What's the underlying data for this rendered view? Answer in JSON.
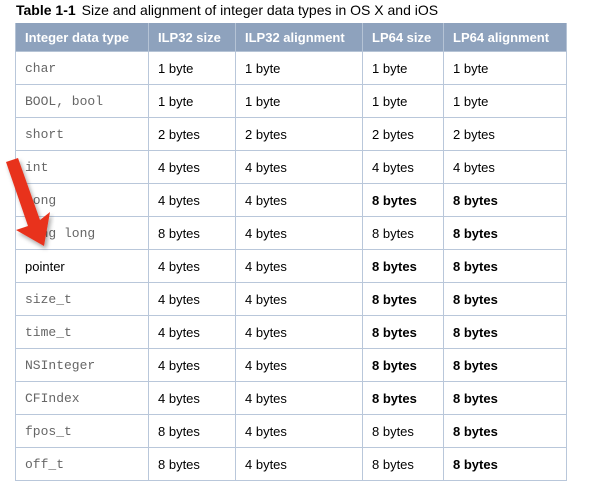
{
  "caption": {
    "label": "Table 1-1",
    "text": "Size and alignment of integer data types in OS X and iOS"
  },
  "headers": [
    "Integer data type",
    "ILP32 size",
    "ILP32 alignment",
    "LP64 size",
    "LP64 alignment"
  ],
  "rows": [
    {
      "type": "char",
      "mono": true,
      "cells": [
        "1 byte",
        "1 byte",
        "1 byte",
        "1 byte"
      ],
      "bold": [
        false,
        false,
        false,
        false
      ]
    },
    {
      "type": "BOOL, bool",
      "mono": true,
      "cells": [
        "1 byte",
        "1 byte",
        "1 byte",
        "1 byte"
      ],
      "bold": [
        false,
        false,
        false,
        false
      ]
    },
    {
      "type": "short",
      "mono": true,
      "cells": [
        "2 bytes",
        "2 bytes",
        "2 bytes",
        "2 bytes"
      ],
      "bold": [
        false,
        false,
        false,
        false
      ]
    },
    {
      "type": "int",
      "mono": true,
      "cells": [
        "4 bytes",
        "4 bytes",
        "4 bytes",
        "4 bytes"
      ],
      "bold": [
        false,
        false,
        false,
        false
      ]
    },
    {
      "type": "long",
      "mono": true,
      "cells": [
        "4 bytes",
        "4 bytes",
        "8 bytes",
        "8 bytes"
      ],
      "bold": [
        false,
        false,
        true,
        true
      ]
    },
    {
      "type": "long long",
      "mono": true,
      "cells": [
        "8 bytes",
        "4 bytes",
        "8 bytes",
        "8 bytes"
      ],
      "bold": [
        false,
        false,
        false,
        true
      ]
    },
    {
      "type": "pointer",
      "mono": false,
      "cells": [
        "4 bytes",
        "4 bytes",
        "8 bytes",
        "8 bytes"
      ],
      "bold": [
        false,
        false,
        true,
        true
      ]
    },
    {
      "type": "size_t",
      "mono": true,
      "cells": [
        "4 bytes",
        "4 bytes",
        "8 bytes",
        "8 bytes"
      ],
      "bold": [
        false,
        false,
        true,
        true
      ]
    },
    {
      "type": "time_t",
      "mono": true,
      "cells": [
        "4 bytes",
        "4 bytes",
        "8 bytes",
        "8 bytes"
      ],
      "bold": [
        false,
        false,
        true,
        true
      ]
    },
    {
      "type": "NSInteger",
      "mono": true,
      "cells": [
        "4 bytes",
        "4 bytes",
        "8 bytes",
        "8 bytes"
      ],
      "bold": [
        false,
        false,
        true,
        true
      ]
    },
    {
      "type": "CFIndex",
      "mono": true,
      "cells": [
        "4 bytes",
        "4 bytes",
        "8 bytes",
        "8 bytes"
      ],
      "bold": [
        false,
        false,
        true,
        true
      ]
    },
    {
      "type": "fpos_t",
      "mono": true,
      "cells": [
        "8 bytes",
        "4 bytes",
        "8 bytes",
        "8 bytes"
      ],
      "bold": [
        false,
        false,
        false,
        true
      ]
    },
    {
      "type": "off_t",
      "mono": true,
      "cells": [
        "8 bytes",
        "4 bytes",
        "8 bytes",
        "8 bytes"
      ],
      "bold": [
        false,
        false,
        false,
        true
      ]
    }
  ],
  "colors": {
    "header_bg": "#8ea2bd",
    "arrow": "#e8321e"
  },
  "annotation_icon": "red-arrow-icon"
}
